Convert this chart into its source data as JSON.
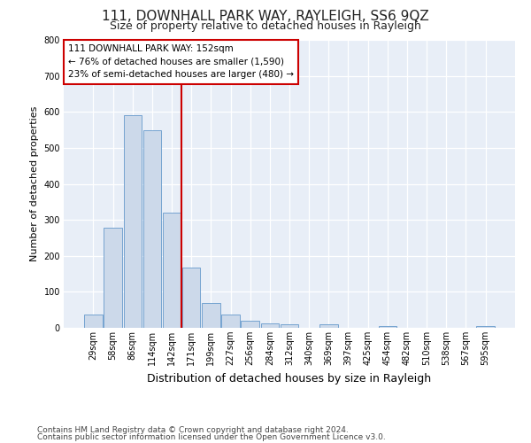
{
  "title1": "111, DOWNHALL PARK WAY, RAYLEIGH, SS6 9QZ",
  "title2": "Size of property relative to detached houses in Rayleigh",
  "xlabel": "Distribution of detached houses by size in Rayleigh",
  "ylabel": "Number of detached properties",
  "categories": [
    "29sqm",
    "58sqm",
    "86sqm",
    "114sqm",
    "142sqm",
    "171sqm",
    "199sqm",
    "227sqm",
    "256sqm",
    "284sqm",
    "312sqm",
    "340sqm",
    "369sqm",
    "397sqm",
    "425sqm",
    "454sqm",
    "482sqm",
    "510sqm",
    "538sqm",
    "567sqm",
    "595sqm"
  ],
  "values": [
    38,
    278,
    590,
    548,
    320,
    168,
    68,
    38,
    20,
    12,
    10,
    0,
    10,
    0,
    0,
    5,
    0,
    0,
    0,
    0,
    6
  ],
  "bar_color": "#ccd9ea",
  "bar_edge_color": "#6699cc",
  "vline_x": 4.5,
  "annotation_text": "111 DOWNHALL PARK WAY: 152sqm\n← 76% of detached houses are smaller (1,590)\n23% of semi-detached houses are larger (480) →",
  "annotation_box_color": "#ffffff",
  "annotation_box_edge": "#cc0000",
  "vline_color": "#cc0000",
  "footer1": "Contains HM Land Registry data © Crown copyright and database right 2024.",
  "footer2": "Contains public sector information licensed under the Open Government Licence v3.0.",
  "plot_background": "#e8eef7",
  "ylim": [
    0,
    800
  ],
  "yticks": [
    0,
    100,
    200,
    300,
    400,
    500,
    600,
    700,
    800
  ],
  "grid_color": "#ffffff",
  "title1_fontsize": 11,
  "title2_fontsize": 9,
  "xlabel_fontsize": 9,
  "ylabel_fontsize": 8,
  "tick_fontsize": 7,
  "annotation_fontsize": 7.5,
  "footer_fontsize": 6.5
}
